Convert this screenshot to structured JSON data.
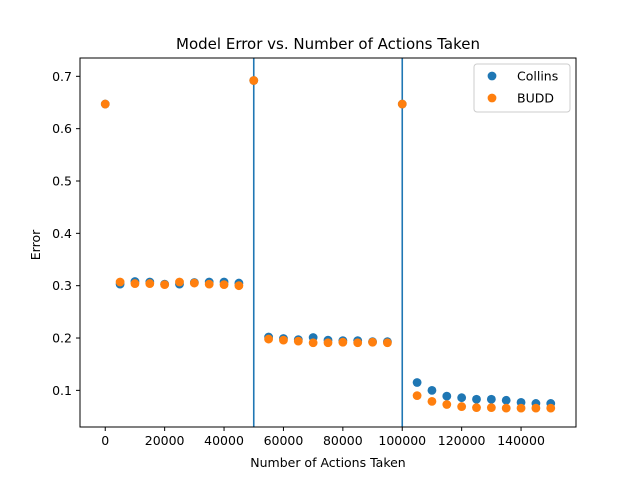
{
  "chart_data": {
    "type": "scatter",
    "title": "Model Error vs. Number of Actions Taken",
    "xlabel": "Number of Actions Taken",
    "ylabel": "Error",
    "xlim": [
      -8500,
      158500
    ],
    "ylim": [
      0.03,
      0.735
    ],
    "xticks": [
      0,
      20000,
      40000,
      60000,
      80000,
      100000,
      120000,
      140000
    ],
    "xtick_labels": [
      "0",
      "20000",
      "40000",
      "60000",
      "80000",
      "100000",
      "120000",
      "140000"
    ],
    "yticks": [
      0.1,
      0.2,
      0.3,
      0.4,
      0.5,
      0.6,
      0.7
    ],
    "ytick_labels": [
      "0.1",
      "0.2",
      "0.3",
      "0.4",
      "0.5",
      "0.6",
      "0.7"
    ],
    "vlines": [
      50000,
      100000
    ],
    "vline_color": "#1f77b4",
    "grid": false,
    "legend_position": "top-right",
    "series": [
      {
        "name": "Collins",
        "color": "#1f77b4",
        "x": [
          0,
          5000,
          10000,
          15000,
          20000,
          25000,
          30000,
          35000,
          40000,
          45000,
          50000,
          55000,
          60000,
          65000,
          70000,
          75000,
          80000,
          85000,
          90000,
          95000,
          100000,
          105000,
          110000,
          115000,
          120000,
          125000,
          130000,
          135000,
          140000,
          145000,
          150000
        ],
        "y": [
          0.647,
          0.303,
          0.308,
          0.307,
          0.303,
          0.303,
          0.306,
          0.307,
          0.307,
          0.305,
          0.692,
          0.202,
          0.199,
          0.197,
          0.201,
          0.196,
          0.195,
          0.195,
          0.193,
          0.193,
          0.647,
          0.115,
          0.1,
          0.089,
          0.086,
          0.083,
          0.083,
          0.081,
          0.077,
          0.075,
          0.075
        ]
      },
      {
        "name": "BUDD",
        "color": "#ff7f0e",
        "x": [
          0,
          5000,
          10000,
          15000,
          20000,
          25000,
          30000,
          35000,
          40000,
          45000,
          50000,
          55000,
          60000,
          65000,
          70000,
          75000,
          80000,
          85000,
          90000,
          95000,
          100000,
          105000,
          110000,
          115000,
          120000,
          125000,
          130000,
          135000,
          140000,
          145000,
          150000
        ],
        "y": [
          0.647,
          0.307,
          0.304,
          0.304,
          0.302,
          0.307,
          0.305,
          0.303,
          0.302,
          0.3,
          0.692,
          0.198,
          0.196,
          0.194,
          0.191,
          0.191,
          0.192,
          0.191,
          0.192,
          0.191,
          0.647,
          0.09,
          0.079,
          0.073,
          0.069,
          0.067,
          0.067,
          0.066,
          0.066,
          0.066,
          0.066
        ]
      }
    ]
  }
}
